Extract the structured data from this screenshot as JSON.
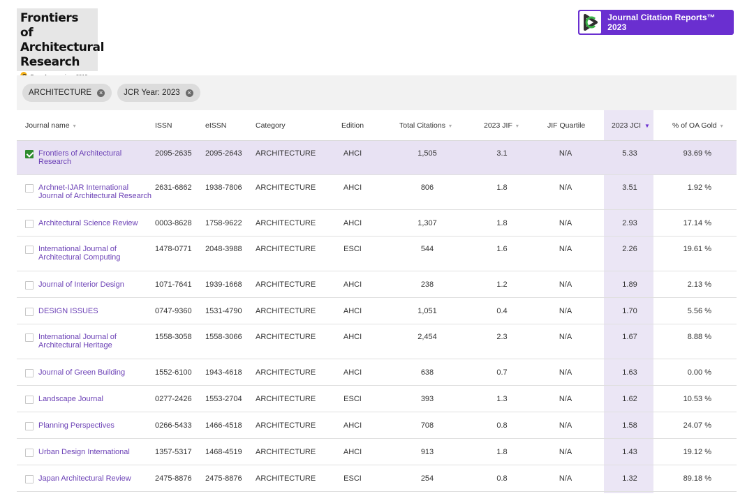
{
  "journal_badge": {
    "title_lines": [
      "Frontiers of",
      "Architectural",
      "Research"
    ],
    "oa_text": "Open Access since 2012"
  },
  "brand": {
    "logo_text": "Journal Citation Reports™ 2023",
    "accent_color": "#6a2fd0"
  },
  "filters": [
    {
      "label": "ARCHITECTURE"
    },
    {
      "label": "JCR Year: 2023"
    }
  ],
  "table": {
    "columns": {
      "name": "Journal name",
      "issn": "ISSN",
      "eissn": "eISSN",
      "category": "Category",
      "edition": "Edition",
      "citations": "Total Citations",
      "jif": "2023 JIF",
      "quartile": "JIF Quartile",
      "jci": "2023 JCI",
      "oa": "% of OA Gold"
    },
    "rows": [
      {
        "name1": "Frontiers of Architectural",
        "name2": "Research",
        "issn": "2095-2635",
        "eissn": "2095-2643",
        "category": "ARCHITECTURE",
        "edition": "AHCI",
        "citations": "1,505",
        "jif": "3.1",
        "quartile": "N/A",
        "jci": "5.33",
        "oa": "93.69 %",
        "checked": true
      },
      {
        "name1": "Archnet-IJAR International",
        "name2": "Journal of Architectural Research",
        "issn": "2631-6862",
        "eissn": "1938-7806",
        "category": "ARCHITECTURE",
        "edition": "AHCI",
        "citations": "806",
        "jif": "1.8",
        "quartile": "N/A",
        "jci": "3.51",
        "oa": "1.92 %"
      },
      {
        "name1": "Architectural Science Review",
        "name2": "",
        "issn": "0003-8628",
        "eissn": "1758-9622",
        "category": "ARCHITECTURE",
        "edition": "AHCI",
        "citations": "1,307",
        "jif": "1.8",
        "quartile": "N/A",
        "jci": "2.93",
        "oa": "17.14 %"
      },
      {
        "name1": "International Journal of",
        "name2": "Architectural Computing",
        "issn": "1478-0771",
        "eissn": "2048-3988",
        "category": "ARCHITECTURE",
        "edition": "ESCI",
        "citations": "544",
        "jif": "1.6",
        "quartile": "N/A",
        "jci": "2.26",
        "oa": "19.61 %"
      },
      {
        "name1": "Journal of Interior Design",
        "name2": "",
        "issn": "1071-7641",
        "eissn": "1939-1668",
        "category": "ARCHITECTURE",
        "edition": "AHCI",
        "citations": "238",
        "jif": "1.2",
        "quartile": "N/A",
        "jci": "1.89",
        "oa": "2.13 %"
      },
      {
        "name1": "DESIGN ISSUES",
        "name2": "",
        "issn": "0747-9360",
        "eissn": "1531-4790",
        "category": "ARCHITECTURE",
        "edition": "AHCI",
        "citations": "1,051",
        "jif": "0.4",
        "quartile": "N/A",
        "jci": "1.70",
        "oa": "5.56 %"
      },
      {
        "name1": "International Journal of",
        "name2": "Architectural Heritage",
        "issn": "1558-3058",
        "eissn": "1558-3066",
        "category": "ARCHITECTURE",
        "edition": "AHCI",
        "citations": "2,454",
        "jif": "2.3",
        "quartile": "N/A",
        "jci": "1.67",
        "oa": "8.88 %"
      },
      {
        "name1": "Journal of Green Building",
        "name2": "",
        "issn": "1552-6100",
        "eissn": "1943-4618",
        "category": "ARCHITECTURE",
        "edition": "AHCI",
        "citations": "638",
        "jif": "0.7",
        "quartile": "N/A",
        "jci": "1.63",
        "oa": "0.00 %"
      },
      {
        "name1": "Landscape Journal",
        "name2": "",
        "issn": "0277-2426",
        "eissn": "1553-2704",
        "category": "ARCHITECTURE",
        "edition": "ESCI",
        "citations": "393",
        "jif": "1.3",
        "quartile": "N/A",
        "jci": "1.62",
        "oa": "10.53 %"
      },
      {
        "name1": "Planning Perspectives",
        "name2": "",
        "issn": "0266-5433",
        "eissn": "1466-4518",
        "category": "ARCHITECTURE",
        "edition": "AHCI",
        "citations": "708",
        "jif": "0.8",
        "quartile": "N/A",
        "jci": "1.58",
        "oa": "24.07 %"
      },
      {
        "name1": "Urban Design International",
        "name2": "",
        "issn": "1357-5317",
        "eissn": "1468-4519",
        "category": "ARCHITECTURE",
        "edition": "AHCI",
        "citations": "913",
        "jif": "1.8",
        "quartile": "N/A",
        "jci": "1.43",
        "oa": "19.12 %"
      },
      {
        "name1": "Japan Architectural Review",
        "name2": "",
        "issn": "2475-8876",
        "eissn": "2475-8876",
        "category": "ARCHITECTURE",
        "edition": "ESCI",
        "citations": "254",
        "jif": "0.8",
        "quartile": "N/A",
        "jci": "1.32",
        "oa": "89.18 %"
      }
    ]
  }
}
